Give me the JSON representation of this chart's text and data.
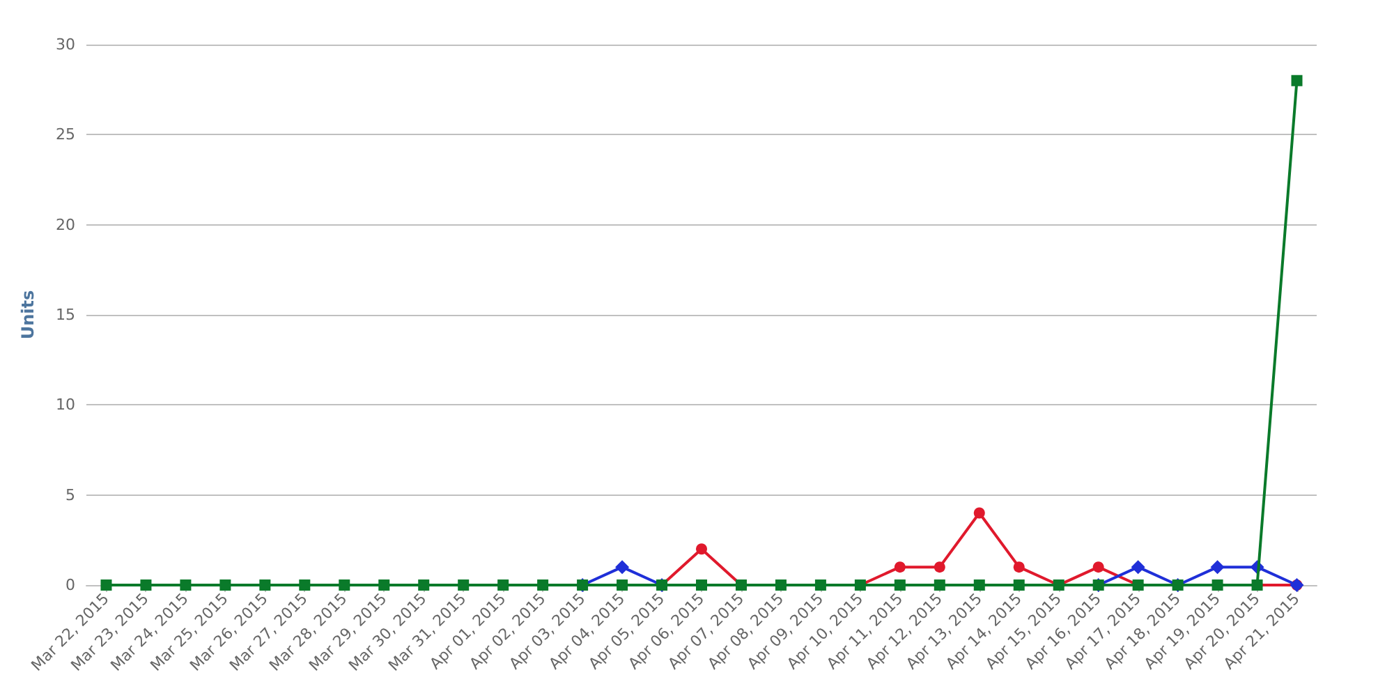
{
  "chart_data": {
    "type": "line",
    "ylabel": "Units",
    "categories": [
      "Mar 22, 2015",
      "Mar 23, 2015",
      "Mar 24, 2015",
      "Mar 25, 2015",
      "Mar 26, 2015",
      "Mar 27, 2015",
      "Mar 28, 2015",
      "Mar 29, 2015",
      "Mar 30, 2015",
      "Mar 31, 2015",
      "Apr 01, 2015",
      "Apr 02, 2015",
      "Apr 03, 2015",
      "Apr 04, 2015",
      "Apr 05, 2015",
      "Apr 06, 2015",
      "Apr 07, 2015",
      "Apr 08, 2015",
      "Apr 09, 2015",
      "Apr 10, 2015",
      "Apr 11, 2015",
      "Apr 12, 2015",
      "Apr 13, 2015",
      "Apr 14, 2015",
      "Apr 15, 2015",
      "Apr 16, 2015",
      "Apr 17, 2015",
      "Apr 18, 2015",
      "Apr 19, 2015",
      "Apr 20, 2015",
      "Apr 21, 2015"
    ],
    "series": [
      {
        "color": "#e0192c",
        "marker": "circle",
        "values": [
          null,
          null,
          null,
          null,
          null,
          null,
          null,
          null,
          null,
          null,
          null,
          null,
          null,
          null,
          0,
          2,
          0,
          null,
          null,
          0,
          1,
          1,
          4,
          1,
          0,
          1,
          0,
          null,
          null,
          0,
          0
        ]
      },
      {
        "color": "#1f2fd8",
        "marker": "diamond",
        "values": [
          null,
          null,
          null,
          null,
          null,
          null,
          null,
          null,
          null,
          null,
          null,
          null,
          0,
          1,
          0,
          null,
          null,
          null,
          null,
          null,
          null,
          null,
          null,
          null,
          null,
          0,
          1,
          0,
          1,
          1,
          0
        ]
      },
      {
        "color": "#0a7a2a",
        "marker": "square",
        "values": [
          0,
          0,
          0,
          0,
          0,
          0,
          0,
          0,
          0,
          0,
          0,
          0,
          0,
          0,
          0,
          0,
          0,
          0,
          0,
          0,
          0,
          0,
          0,
          0,
          0,
          0,
          0,
          0,
          0,
          0,
          28
        ]
      }
    ],
    "ylim": [
      0,
      30
    ],
    "yticks": [
      0,
      5,
      10,
      15,
      20,
      25,
      30
    ],
    "grid": "y",
    "line_style": "solid"
  }
}
